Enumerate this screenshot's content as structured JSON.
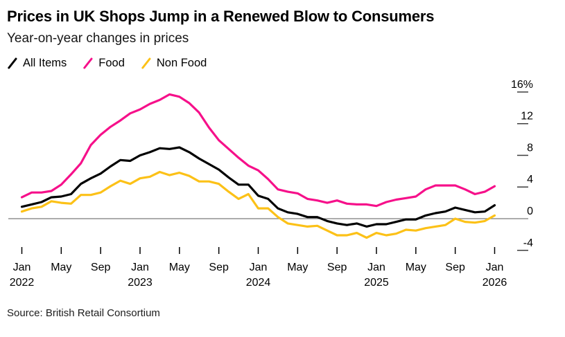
{
  "header": {
    "title": "Prices in UK Shops Jump in a Renewed Blow to Consumers",
    "subtitle": "Year-on-year changes in prices"
  },
  "legend": [
    {
      "label": "All Items",
      "color": "#000000"
    },
    {
      "label": "Food",
      "color": "#f6108a"
    },
    {
      "label": "Non Food",
      "color": "#fcc117"
    }
  ],
  "source": "Source: British Retail Consortium",
  "colors": {
    "zero_line": "#7a7a7a",
    "tick": "#3c3c3c",
    "axis_text": "#000000"
  },
  "chart_data": {
    "type": "line",
    "title": "Prices in UK Shops Jump in a Renewed Blow to Consumers",
    "subtitle": "Year-on-year changes in prices",
    "unit": "%",
    "grid": "zero-line-only",
    "legend_position": "top-left",
    "ylim": [
      -5.5,
      17
    ],
    "x_range": [
      "Jan 2022",
      "Jan 2026"
    ],
    "months": [
      "Jan 2022",
      "Feb 2022",
      "Mar 2022",
      "Apr 2022",
      "May 2022",
      "Jun 2022",
      "Jul 2022",
      "Aug 2022",
      "Sep 2022",
      "Oct 2022",
      "Nov 2022",
      "Dec 2022",
      "Jan 2023",
      "Feb 2023",
      "Mar 2023",
      "Apr 2023",
      "May 2023",
      "Jun 2023",
      "Jul 2023",
      "Aug 2023",
      "Sep 2023",
      "Oct 2023",
      "Nov 2023",
      "Dec 2023",
      "Jan 2024",
      "Feb 2024",
      "Mar 2024",
      "Apr 2024",
      "May 2024",
      "Jun 2024",
      "Jul 2024",
      "Aug 2024",
      "Sep 2024",
      "Oct 2024",
      "Nov 2024",
      "Dec 2024",
      "Jan 2025",
      "Feb 2025",
      "Mar 2025",
      "Apr 2025",
      "May 2025",
      "Jun 2025",
      "Jul 2025",
      "Aug 2025",
      "Sep 2025",
      "Oct 2025",
      "Nov 2025",
      "Dec 2025",
      "Jan 2026"
    ],
    "series": [
      {
        "name": "All Items",
        "color": "#000000",
        "values": [
          1.5,
          1.8,
          2.1,
          2.7,
          2.8,
          3.1,
          4.4,
          5.1,
          5.7,
          6.6,
          7.4,
          7.3,
          8.0,
          8.4,
          8.9,
          8.8,
          9.0,
          8.4,
          7.6,
          6.9,
          6.2,
          5.2,
          4.3,
          4.3,
          2.9,
          2.5,
          1.3,
          0.8,
          0.6,
          0.2,
          0.2,
          -0.3,
          -0.6,
          -0.8,
          -0.6,
          -1.0,
          -0.7,
          -0.7,
          -0.4,
          -0.1,
          -0.1,
          0.4,
          0.7,
          0.9,
          1.4,
          1.1,
          0.8,
          0.9,
          1.7
        ]
      },
      {
        "name": "Food",
        "color": "#f6108a",
        "values": [
          2.7,
          3.3,
          3.3,
          3.5,
          4.3,
          5.6,
          7.0,
          9.3,
          10.6,
          11.6,
          12.4,
          13.3,
          13.8,
          14.5,
          15.0,
          15.7,
          15.4,
          14.6,
          13.4,
          11.5,
          9.9,
          8.8,
          7.7,
          6.7,
          6.1,
          5.0,
          3.7,
          3.4,
          3.2,
          2.5,
          2.3,
          2.0,
          2.3,
          1.9,
          1.8,
          1.8,
          1.6,
          2.1,
          2.4,
          2.6,
          2.8,
          3.7,
          4.2,
          4.2,
          4.2,
          3.7,
          3.1,
          3.4,
          4.1
        ]
      },
      {
        "name": "Non Food",
        "color": "#fcc117",
        "values": [
          0.9,
          1.3,
          1.5,
          2.2,
          2.0,
          1.9,
          3.0,
          3.0,
          3.3,
          4.1,
          4.8,
          4.4,
          5.1,
          5.3,
          5.9,
          5.5,
          5.8,
          5.4,
          4.7,
          4.7,
          4.4,
          3.4,
          2.5,
          3.1,
          1.3,
          1.3,
          0.2,
          -0.6,
          -0.8,
          -1.0,
          -0.9,
          -1.5,
          -2.1,
          -2.1,
          -1.8,
          -2.4,
          -1.8,
          -2.1,
          -1.9,
          -1.4,
          -1.5,
          -1.2,
          -1.0,
          -0.8,
          0.0,
          -0.4,
          -0.5,
          -0.3,
          0.4
        ]
      }
    ],
    "y_ticks": [
      {
        "value": 16,
        "label": "16%"
      },
      {
        "value": 12,
        "label": "12"
      },
      {
        "value": 8,
        "label": "8"
      },
      {
        "value": 4,
        "label": "4"
      },
      {
        "value": 0,
        "label": "0"
      },
      {
        "value": -4,
        "label": "-4"
      }
    ],
    "x_ticks": [
      {
        "m": 0,
        "month": "Jan",
        "year": "2022"
      },
      {
        "m": 4,
        "month": "May",
        "year": ""
      },
      {
        "m": 8,
        "month": "Sep",
        "year": ""
      },
      {
        "m": 12,
        "month": "Jan",
        "year": "2023"
      },
      {
        "m": 16,
        "month": "May",
        "year": ""
      },
      {
        "m": 20,
        "month": "Sep",
        "year": ""
      },
      {
        "m": 24,
        "month": "Jan",
        "year": "2024"
      },
      {
        "m": 28,
        "month": "May",
        "year": ""
      },
      {
        "m": 32,
        "month": "Sep",
        "year": ""
      },
      {
        "m": 36,
        "month": "Jan",
        "year": "2025"
      },
      {
        "m": 40,
        "month": "May",
        "year": ""
      },
      {
        "m": 44,
        "month": "Sep",
        "year": ""
      },
      {
        "m": 48,
        "month": "Jan",
        "year": "2026"
      }
    ]
  }
}
